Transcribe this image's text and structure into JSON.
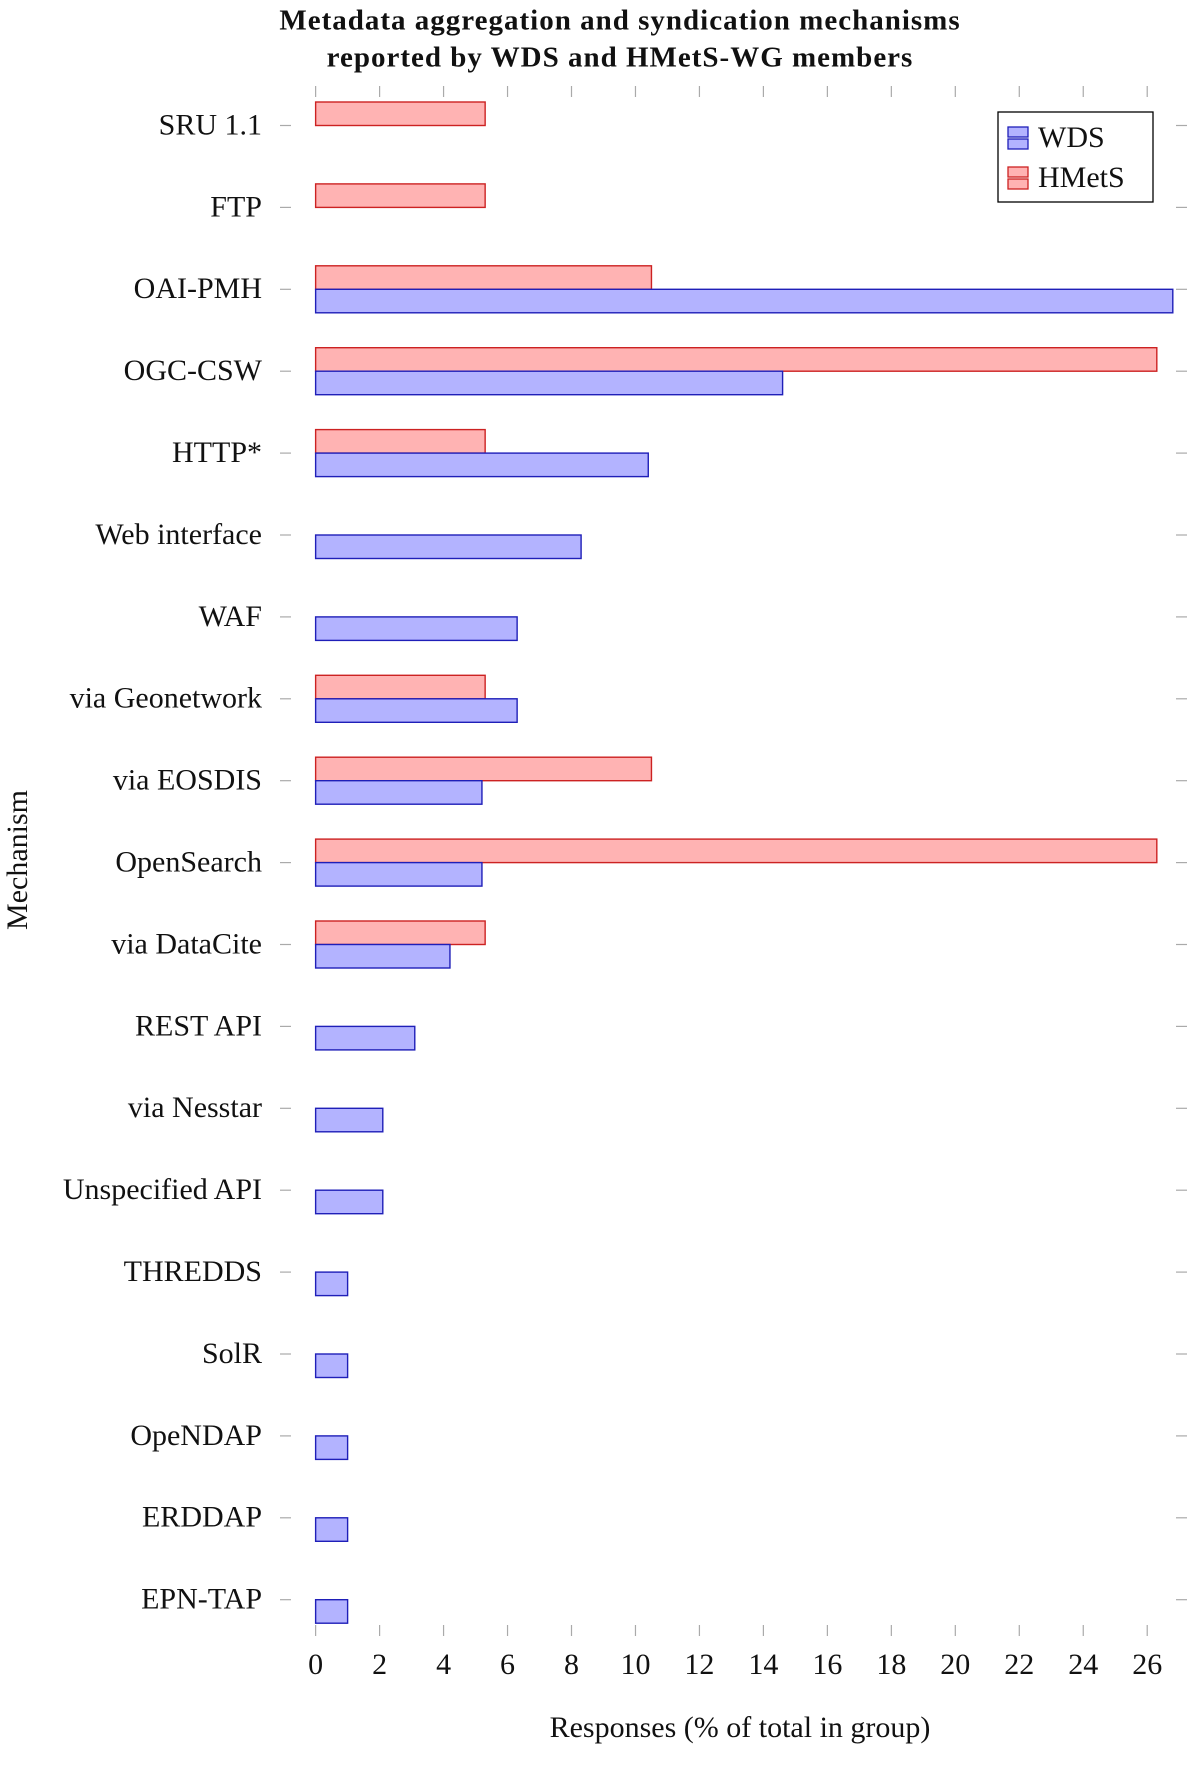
{
  "chart_data": {
    "type": "barh",
    "title": [
      "Metadata aggregation and syndication mechanisms",
      "reported by WDS and HMetS-WG members"
    ],
    "xlabel": "Responses (% of total in group)",
    "ylabel": "Mechanism",
    "categories": [
      "SRU 1.1",
      "FTP",
      "OAI-PMH",
      "OGC-CSW",
      "HTTP*",
      "Web interface",
      "WAF",
      "via Geonetwork",
      "via EOSDIS",
      "OpenSearch",
      "via DataCite",
      "REST API",
      "via Nesstar",
      "Unspecified API",
      "THREDDS",
      "SolR",
      "OpeNDAP",
      "ERDDAP",
      "EPN-TAP"
    ],
    "series": [
      {
        "name": "WDS",
        "color": "#b3b3ff",
        "edge_color": "#1f1fb8",
        "values": [
          0,
          0,
          26.8,
          14.6,
          10.4,
          8.3,
          6.3,
          6.3,
          5.2,
          5.2,
          4.2,
          3.1,
          2.1,
          2.1,
          1.0,
          1.0,
          1.0,
          1.0,
          1.0
        ]
      },
      {
        "name": "HMetS",
        "color": "#ffb3b3",
        "edge_color": "#cc2222",
        "values": [
          5.3,
          5.3,
          10.5,
          26.3,
          5.3,
          0,
          0,
          5.3,
          10.5,
          26.3,
          5.3,
          0,
          0,
          0,
          0,
          0,
          0,
          0,
          0
        ]
      }
    ],
    "xlim": [
      -0.77,
      26.9
    ],
    "xticks": [
      0,
      2,
      4,
      6,
      8,
      10,
      12,
      14,
      16,
      18,
      20,
      22,
      24,
      26
    ],
    "legend": "upper right"
  }
}
